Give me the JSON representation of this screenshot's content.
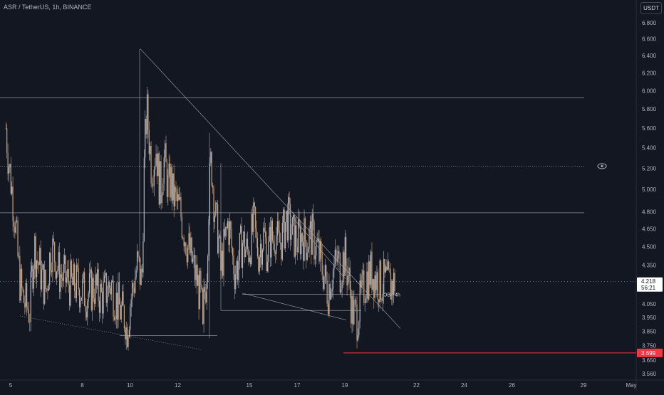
{
  "header": {
    "title": "ASR / TetherUS, 1h, BINANCE",
    "unit_button": "USDT"
  },
  "price_axis": {
    "current_price": "4.218",
    "countdown": "56:21",
    "alert_price": "3.699"
  },
  "annotations": {
    "ob_label": "OB+ 4h"
  },
  "colors": {
    "background": "#131722",
    "text": "#b2b5be",
    "candle_up": "#b2b5be",
    "candle_down": "#c8a27a",
    "alert": "#f23645",
    "lines": "#d1d4dc"
  },
  "icons": {
    "visibility": "eye-icon"
  },
  "chart_data": {
    "type": "candlestick",
    "title": "ASR / TetherUS, 1h, BINANCE",
    "ylim": [
      3.54,
      6.96
    ],
    "y_scale": "log",
    "y_ticks": [
      "6.800",
      "6.600",
      "6.400",
      "6.200",
      "6.000",
      "5.800",
      "5.600",
      "5.400",
      "5.200",
      "5.000",
      "4.800",
      "4.650",
      "4.500",
      "4.350",
      "4.200",
      "4.050",
      "3.950",
      "3.850",
      "3.750",
      "3.650",
      "3.560"
    ],
    "x_ticks": [
      "5",
      "8",
      "10",
      "12",
      "15",
      "17",
      "19",
      "22",
      "24",
      "26",
      "29",
      "May"
    ],
    "x_tick_days": [
      5,
      8,
      10,
      12,
      15,
      17,
      19,
      22,
      24,
      26,
      29,
      31
    ],
    "xlim_days": [
      4.8,
      31.1
    ],
    "path_days": [
      4.8,
      4.9,
      5.0,
      5.1,
      5.2,
      5.3,
      5.4,
      5.5,
      5.6,
      5.8,
      5.9,
      6.0,
      6.1,
      6.2,
      6.3,
      6.4,
      6.5,
      6.6,
      6.7,
      6.8,
      6.9,
      7.0,
      7.2,
      7.4,
      7.6,
      7.8,
      8.0,
      8.2,
      8.5,
      8.8,
      9.0,
      9.2,
      9.4,
      9.6,
      9.8,
      9.85,
      9.9,
      10.0,
      10.1,
      10.2,
      10.3,
      10.4,
      10.5,
      10.6,
      10.7,
      10.8,
      10.9,
      11.0,
      11.1,
      11.2,
      11.3,
      11.4,
      11.5,
      11.6,
      11.7,
      11.8,
      11.9,
      12.0,
      12.1,
      12.3,
      12.5,
      12.7,
      12.9,
      13.0,
      13.05,
      13.1,
      13.2,
      13.3,
      13.4,
      13.5,
      13.6,
      13.7,
      13.8,
      13.9,
      14.0,
      14.1,
      14.2,
      14.3,
      14.4,
      14.5,
      14.6,
      14.7,
      14.8,
      14.9,
      15.0,
      15.1,
      15.2,
      15.3,
      15.4,
      15.5,
      15.6,
      15.7,
      15.8,
      15.9,
      16.0,
      16.1,
      16.2,
      16.3,
      16.4,
      16.5,
      16.6,
      16.8,
      17.0,
      17.2,
      17.4,
      17.6,
      17.8,
      17.9,
      18.0,
      18.1,
      18.2,
      18.3,
      18.4,
      18.5,
      18.6,
      18.7,
      18.8,
      18.9,
      19.0,
      19.05,
      19.1,
      19.2,
      19.3,
      19.5,
      19.7,
      19.9,
      20.1,
      20.3,
      20.5,
      20.7,
      20.9,
      21.0,
      21.1
    ],
    "path_prices": [
      5.6,
      5.3,
      5.1,
      4.9,
      4.7,
      4.4,
      4.2,
      4.1,
      4.05,
      4.0,
      4.3,
      4.5,
      4.4,
      4.35,
      4.25,
      4.2,
      4.15,
      4.35,
      4.5,
      4.45,
      4.4,
      4.3,
      4.25,
      4.22,
      4.18,
      4.2,
      4.15,
      4.12,
      4.18,
      4.1,
      4.15,
      4.2,
      4.08,
      4.0,
      3.95,
      3.85,
      3.9,
      4.05,
      4.15,
      4.25,
      4.35,
      4.3,
      4.2,
      5.3,
      5.8,
      5.5,
      5.2,
      5.3,
      5.4,
      5.1,
      5.0,
      5.3,
      5.2,
      5.0,
      5.1,
      4.95,
      4.9,
      4.85,
      4.8,
      4.6,
      4.45,
      4.3,
      4.15,
      4.05,
      3.8,
      4.1,
      4.25,
      4.9,
      5.3,
      4.95,
      4.7,
      4.6,
      4.3,
      4.45,
      4.55,
      4.7,
      4.6,
      4.4,
      4.3,
      4.35,
      4.45,
      4.55,
      4.5,
      4.45,
      4.5,
      4.6,
      4.7,
      4.5,
      4.45,
      4.55,
      4.6,
      4.5,
      4.45,
      4.6,
      4.55,
      4.65,
      4.5,
      4.55,
      4.6,
      4.7,
      4.75,
      4.6,
      4.55,
      4.6,
      4.55,
      4.6,
      4.5,
      4.45,
      4.35,
      4.3,
      4.2,
      4.15,
      4.25,
      4.3,
      4.35,
      4.4,
      4.3,
      4.38,
      4.42,
      4.35,
      4.3,
      4.2,
      4.0,
      3.95,
      4.1,
      4.25,
      4.3,
      4.25,
      4.2,
      4.22,
      4.18,
      4.2,
      4.22,
      4.2,
      4.218
    ]
  }
}
